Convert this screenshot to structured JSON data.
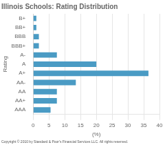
{
  "chart_data": {
    "type": "bar",
    "orientation": "horizontal",
    "title": "Illinois Schools: Rating Distribution",
    "xlabel": "(%)",
    "ylabel": "Rating",
    "categories": [
      "B+",
      "BB+",
      "BBB",
      "BBB+",
      "A-",
      "A",
      "A+",
      "AA-",
      "AA",
      "AA+",
      "AAA"
    ],
    "values": [
      1.0,
      1.0,
      1.8,
      1.8,
      7.5,
      20.0,
      36.5,
      13.5,
      7.5,
      7.5,
      5.5
    ],
    "color": "#4a9bc4",
    "xlim": [
      0,
      40
    ],
    "xticks": [
      0,
      5,
      10,
      15,
      20,
      25,
      30,
      35,
      40
    ],
    "grid": true,
    "annotations": [
      "Copyright © 2010 by Standard & Poor's Financial Services LLC. All rights reserved."
    ]
  }
}
